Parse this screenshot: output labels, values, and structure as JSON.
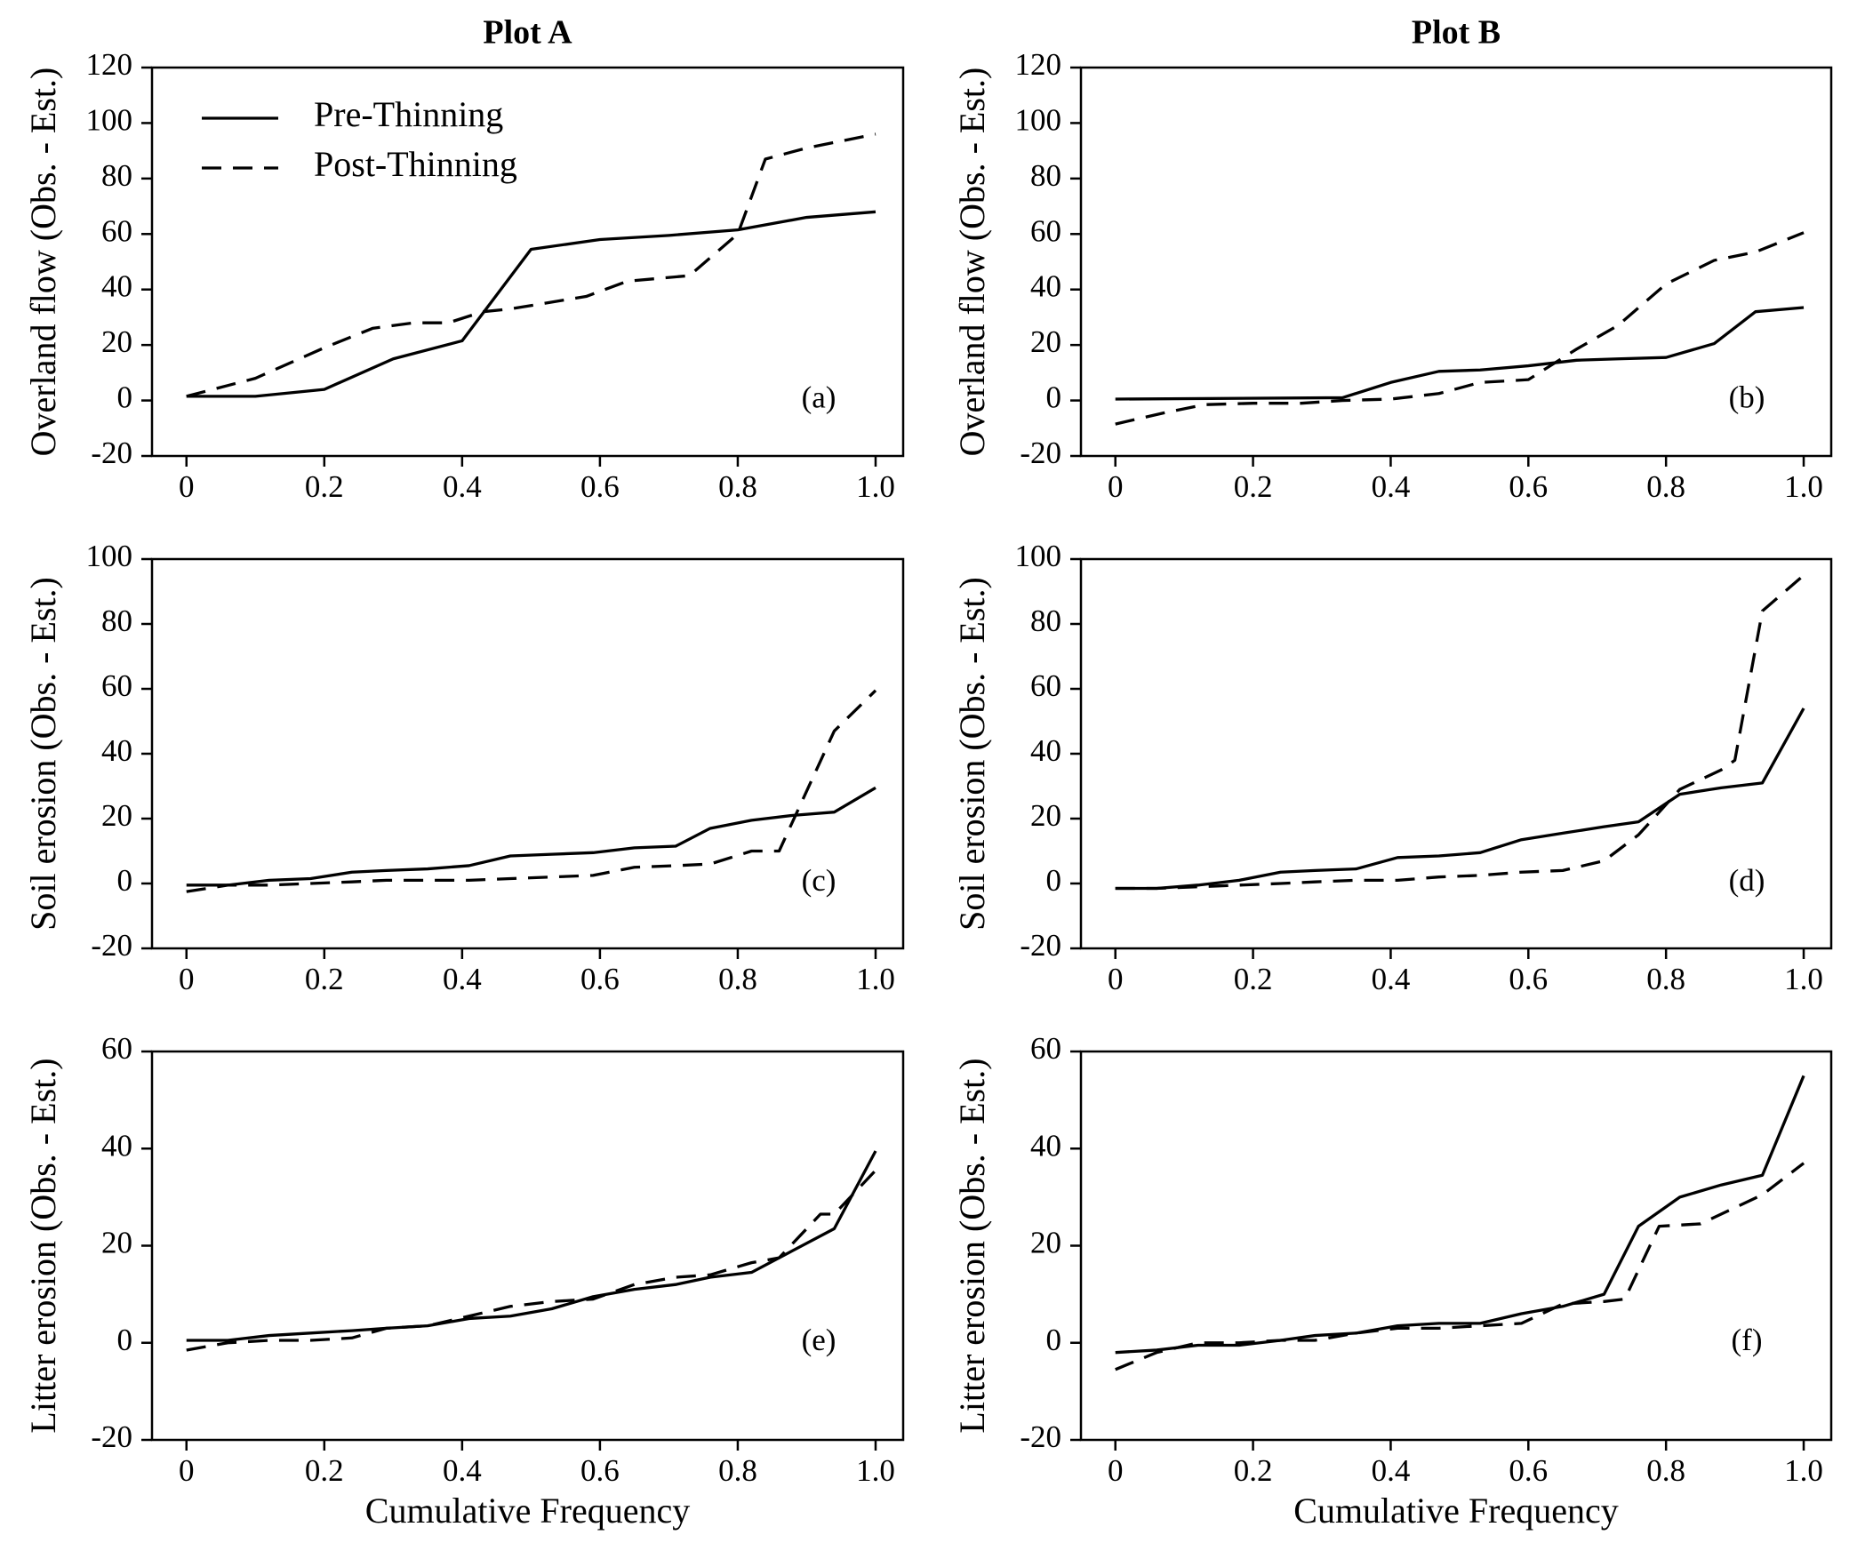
{
  "chart_data": [
    {
      "type": "line",
      "title": "Plot A",
      "ylabel": "Overland flow (Obs. - Est.)",
      "panel_label": "(a)",
      "legend": "upper left",
      "xlim": [
        -0.05,
        1.04
      ],
      "xticks": [
        0,
        0.2,
        0.4,
        0.6,
        0.8,
        {
          "value": 1,
          "label": "1.0"
        }
      ],
      "ylim": [
        -20,
        120
      ],
      "yticks": [
        -20,
        0,
        20,
        40,
        60,
        80,
        100,
        120
      ],
      "series": [
        {
          "name": "Pre-Thinning",
          "color": "#000000",
          "style": "solid",
          "x": [
            0,
            0.1,
            0.2,
            0.3,
            0.4,
            0.5,
            0.6,
            0.7,
            0.8,
            0.9,
            1.0
          ],
          "values": [
            1.5,
            1.5,
            4,
            15,
            21.5,
            54.5,
            58,
            59.5,
            61.5,
            66,
            68
          ]
        },
        {
          "name": "Post-Thinning",
          "color": "#000000",
          "style": "dashed",
          "x": [
            0,
            0.1,
            0.2,
            0.27,
            0.33,
            0.38,
            0.43,
            0.47,
            0.58,
            0.64,
            0.73,
            0.8,
            0.84,
            0.9,
            1.0
          ],
          "values": [
            1.5,
            8,
            19,
            26,
            28,
            28,
            32,
            33,
            37.5,
            43,
            45,
            60,
            87,
            91,
            96
          ]
        }
      ]
    },
    {
      "type": "line",
      "title": "Plot B",
      "ylabel": "Overland flow (Obs. - Est.)",
      "panel_label": "(b)",
      "xlim": [
        -0.05,
        1.04
      ],
      "xticks": [
        0,
        0.2,
        0.4,
        0.6,
        0.8,
        {
          "value": 1,
          "label": "1.0"
        }
      ],
      "ylim": [
        -20,
        120
      ],
      "yticks": [
        -20,
        0,
        20,
        40,
        60,
        80,
        100,
        120
      ],
      "series": [
        {
          "color": "#000000",
          "style": "solid",
          "x": [
            0,
            0.33,
            0.4,
            0.47,
            0.53,
            0.6,
            0.67,
            0.73,
            0.8,
            0.87,
            0.93,
            1.0
          ],
          "values": [
            0.5,
            1,
            6.5,
            10.5,
            11,
            12.5,
            14.5,
            15,
            15.5,
            20.5,
            32,
            33.5
          ]
        },
        {
          "color": "#000000",
          "style": "dashed",
          "x": [
            0,
            0.07,
            0.13,
            0.2,
            0.27,
            0.33,
            0.4,
            0.47,
            0.53,
            0.6,
            0.67,
            0.73,
            0.8,
            0.87,
            0.93,
            1.0
          ],
          "values": [
            -8.5,
            -4.5,
            -1.5,
            -1,
            -1,
            0,
            0.5,
            2.5,
            6.5,
            7.5,
            18.5,
            27,
            42,
            50.5,
            53.5,
            60.5
          ]
        }
      ]
    },
    {
      "type": "line",
      "ylabel": "Soil erosion (Obs. - Est.)",
      "panel_label": "(c)",
      "xlim": [
        -0.05,
        1.04
      ],
      "xticks": [
        0,
        0.2,
        0.4,
        0.6,
        0.8,
        {
          "value": 1,
          "label": "1.0"
        }
      ],
      "ylim": [
        -20,
        100
      ],
      "yticks": [
        -20,
        0,
        20,
        40,
        60,
        80,
        100
      ],
      "series": [
        {
          "color": "#000000",
          "style": "solid",
          "x": [
            0,
            0.06,
            0.12,
            0.18,
            0.24,
            0.29,
            0.35,
            0.41,
            0.47,
            0.53,
            0.59,
            0.65,
            0.71,
            0.76,
            0.82,
            0.88,
            0.94,
            1.0
          ],
          "values": [
            -0.5,
            -0.5,
            1,
            1.5,
            3.5,
            4,
            4.5,
            5.5,
            8.5,
            9,
            9.5,
            11,
            11.5,
            17,
            19.5,
            21,
            22,
            29.5
          ]
        },
        {
          "color": "#000000",
          "style": "dashed",
          "x": [
            0,
            0.06,
            0.12,
            0.18,
            0.24,
            0.29,
            0.35,
            0.41,
            0.47,
            0.53,
            0.59,
            0.65,
            0.71,
            0.76,
            0.82,
            0.86,
            0.94,
            1.0
          ],
          "values": [
            -2.5,
            -0.5,
            -0.5,
            0,
            0.5,
            1,
            1,
            1,
            1.5,
            2,
            2.5,
            5,
            5.5,
            6,
            10,
            10,
            47,
            59.5
          ]
        }
      ]
    },
    {
      "type": "line",
      "ylabel": "Soil erosion (Obs. - Est.)",
      "panel_label": "(d)",
      "xlim": [
        -0.05,
        1.04
      ],
      "xticks": [
        0,
        0.2,
        0.4,
        0.6,
        0.8,
        {
          "value": 1,
          "label": "1.0"
        }
      ],
      "ylim": [
        -20,
        100
      ],
      "yticks": [
        -20,
        0,
        20,
        40,
        60,
        80,
        100
      ],
      "series": [
        {
          "color": "#000000",
          "style": "solid",
          "x": [
            0,
            0.06,
            0.12,
            0.18,
            0.24,
            0.29,
            0.35,
            0.41,
            0.47,
            0.53,
            0.59,
            0.65,
            0.71,
            0.76,
            0.82,
            0.88,
            0.94,
            1.0
          ],
          "values": [
            -1.5,
            -1.5,
            -0.5,
            1,
            3.5,
            4,
            4.5,
            8,
            8.5,
            9.5,
            13.5,
            15.5,
            17.5,
            19,
            27.5,
            29.5,
            31,
            54
          ]
        },
        {
          "color": "#000000",
          "style": "dashed",
          "x": [
            0,
            0.06,
            0.12,
            0.18,
            0.24,
            0.29,
            0.35,
            0.41,
            0.47,
            0.53,
            0.59,
            0.65,
            0.71,
            0.76,
            0.82,
            0.88,
            0.9,
            0.94,
            1.0
          ],
          "values": [
            -1.5,
            -1.5,
            -1,
            -0.5,
            0,
            0.5,
            1,
            1,
            2,
            2.5,
            3.5,
            4,
            7,
            15,
            29,
            35,
            38,
            84,
            95
          ]
        }
      ]
    },
    {
      "type": "line",
      "ylabel": "Litter erosion (Obs. - Est.)",
      "panel_label": "(e)",
      "xlim": [
        -0.05,
        1.04
      ],
      "xticks": [
        0,
        0.2,
        0.4,
        0.6,
        0.8,
        {
          "value": 1,
          "label": "1.0"
        }
      ],
      "ylim": [
        -20,
        60
      ],
      "yticks": [
        -20,
        0,
        20,
        40,
        60
      ],
      "xlabel": "Cumulative Frequency",
      "series": [
        {
          "color": "#000000",
          "style": "solid",
          "x": [
            0,
            0.06,
            0.12,
            0.18,
            0.24,
            0.29,
            0.35,
            0.41,
            0.47,
            0.53,
            0.59,
            0.65,
            0.71,
            0.76,
            0.82,
            0.88,
            0.94,
            1.0
          ],
          "values": [
            0.5,
            0.5,
            1.5,
            2,
            2.5,
            3,
            3.5,
            5,
            5.5,
            7,
            9.5,
            11,
            12,
            13.5,
            14.5,
            19,
            23.5,
            39.5
          ]
        },
        {
          "color": "#000000",
          "style": "dashed",
          "x": [
            0,
            0.06,
            0.12,
            0.18,
            0.24,
            0.29,
            0.35,
            0.41,
            0.47,
            0.53,
            0.59,
            0.65,
            0.71,
            0.76,
            0.82,
            0.86,
            0.92,
            0.94,
            1.0
          ],
          "values": [
            -1.5,
            0,
            0.5,
            0.5,
            1,
            3,
            3.5,
            5.5,
            7.5,
            8.5,
            9,
            12,
            13.5,
            14,
            16.5,
            17.5,
            26.5,
            26.5,
            35.5
          ]
        }
      ]
    },
    {
      "type": "line",
      "ylabel": "Litter erosion (Obs. - Est.)",
      "panel_label": "(f)",
      "xlim": [
        -0.05,
        1.04
      ],
      "xticks": [
        0,
        0.2,
        0.4,
        0.6,
        0.8,
        {
          "value": 1,
          "label": "1.0"
        }
      ],
      "ylim": [
        -20,
        60
      ],
      "yticks": [
        -20,
        0,
        20,
        40,
        60
      ],
      "xlabel": "Cumulative Frequency",
      "series": [
        {
          "color": "#000000",
          "style": "solid",
          "x": [
            0,
            0.06,
            0.12,
            0.18,
            0.24,
            0.29,
            0.35,
            0.41,
            0.47,
            0.53,
            0.59,
            0.65,
            0.71,
            0.76,
            0.82,
            0.88,
            0.94,
            1.0
          ],
          "values": [
            -2,
            -1.5,
            -0.5,
            -0.5,
            0.5,
            1.5,
            2,
            3.5,
            4,
            4,
            6,
            7.5,
            10,
            24,
            30,
            32.5,
            34.5,
            55
          ]
        },
        {
          "color": "#000000",
          "style": "dashed",
          "x": [
            0,
            0.06,
            0.12,
            0.18,
            0.24,
            0.29,
            0.35,
            0.41,
            0.47,
            0.53,
            0.59,
            0.65,
            0.71,
            0.74,
            0.79,
            0.85,
            0.94,
            1.0
          ],
          "values": [
            -5.5,
            -2,
            0,
            0,
            0.5,
            0.5,
            2,
            3,
            3,
            3.5,
            4,
            8,
            8.5,
            9,
            24,
            24.5,
            30.5,
            37
          ]
        }
      ]
    }
  ]
}
